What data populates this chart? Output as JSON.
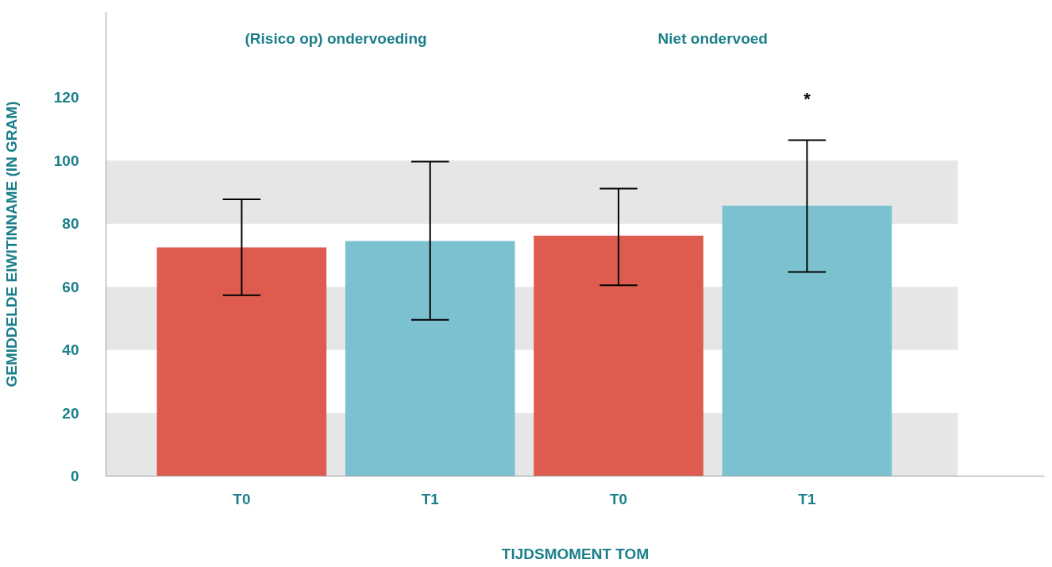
{
  "chart_data": {
    "type": "bar",
    "xlabel": "TIJDSMOMENT TOM",
    "ylabel": "GEMIDDELDE EIWITINNAME (IN GRAM)",
    "categories": [
      "T0",
      "T1",
      "T0",
      "T1"
    ],
    "values": [
      72.5,
      74.5,
      76.2,
      85.7
    ],
    "colors": [
      "#de5c4f",
      "#7bc1d0",
      "#de5c4f",
      "#7bc1d0"
    ],
    "errors": [
      [
        57.3,
        87.7
      ],
      [
        49.5,
        99.7
      ],
      [
        60.5,
        91.1
      ],
      [
        64.7,
        106.5
      ]
    ],
    "ylim": [
      0,
      147
    ],
    "yticks": [
      0,
      20,
      40,
      60,
      80,
      100,
      120
    ],
    "bands": [
      {
        "axis": "y",
        "from": 0,
        "to": 20,
        "color": "#e5e6e6"
      },
      {
        "axis": "y",
        "from": 40,
        "to": 60,
        "color": "#e5e6e6"
      },
      {
        "axis": "y",
        "from": 80,
        "to": 100,
        "color": "#e5e6e6"
      }
    ],
    "annotations": [
      "(Risico op) ondervoeding",
      "Niet ondervoed",
      "*"
    ],
    "grid": false
  }
}
